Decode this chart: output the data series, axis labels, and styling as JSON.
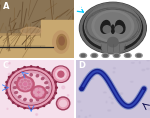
{
  "figsize": [
    1.5,
    1.18
  ],
  "dpi": 100,
  "wspace": 0.02,
  "hspace": 0.02,
  "label_fontsize": 6,
  "panels": {
    "A": {
      "bg_top": "#8a7455",
      "bg_mid": "#b09060",
      "bg_skin": "#c8a870",
      "hair_dark": "#5a4025",
      "hair_mid": "#7a5a30",
      "ear_outer": "#c09868",
      "ear_inner": "#a07848",
      "glasses": "#252525",
      "label_color": "white"
    },
    "B": {
      "bg": "#1a1a1a",
      "skull_color": "#505050",
      "brain_outer": "#707070",
      "brain_mid": "#888888",
      "brain_inner": "#656565",
      "sulci": "#404040",
      "ventricle": "#282828",
      "hardware": "#909090",
      "arrow_color": "#00ccff",
      "label_color": "white"
    },
    "C": {
      "bg": "#f5e0ec",
      "tissue_pale": "#f0dce8",
      "worm_outer_ring": "#c87090",
      "worm_fill": "#e8a0b8",
      "cuticle": "#a04060",
      "inner_fill": "#f0c8d8",
      "uterus_dark": "#c05878",
      "uterus_mid": "#d878a0",
      "uterus_light": "#f0a0c0",
      "microfilaria": "#c06080",
      "arrow_color": "#4488ff",
      "label_color": "white"
    },
    "D": {
      "bg": "#ccc4dc",
      "worm_body": "#18208a",
      "worm_edge": "#3040b0",
      "arrow_color": "#101050",
      "label_color": "white"
    }
  }
}
